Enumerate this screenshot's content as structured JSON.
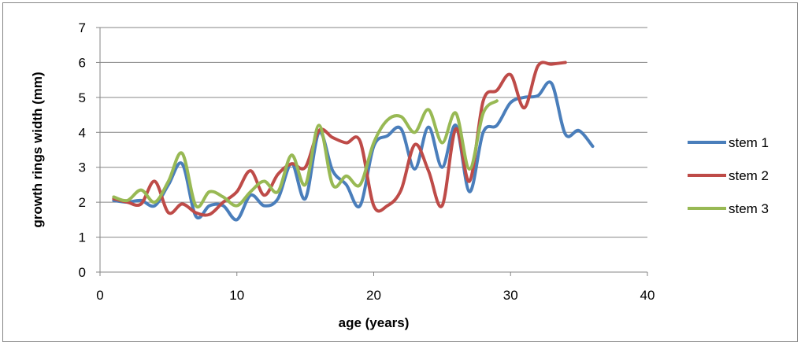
{
  "chart_data": {
    "type": "line",
    "title": "",
    "xlabel": "age (years)",
    "ylabel": "growth rings width (mm)",
    "xlim": [
      0,
      40
    ],
    "ylim": [
      0,
      7
    ],
    "xticks": [
      0,
      10,
      20,
      30,
      40
    ],
    "yticks": [
      0,
      1,
      2,
      3,
      4,
      5,
      6,
      7
    ],
    "grid": "horizontal",
    "legend_position": "right",
    "smooth": true,
    "series": [
      {
        "name": "stem 1",
        "color": "#4a7ebb",
        "x": [
          1,
          2,
          3,
          4,
          5,
          6,
          7,
          8,
          9,
          10,
          11,
          12,
          13,
          14,
          15,
          16,
          17,
          18,
          19,
          20,
          21,
          22,
          23,
          24,
          25,
          26,
          27,
          28,
          29,
          30,
          31,
          32,
          33,
          34,
          35,
          36
        ],
        "values": [
          2.05,
          2.0,
          2.05,
          1.9,
          2.5,
          3.1,
          1.6,
          1.9,
          1.9,
          1.5,
          2.2,
          1.9,
          2.1,
          3.1,
          2.1,
          4.0,
          2.9,
          2.5,
          1.9,
          3.6,
          3.9,
          4.1,
          2.95,
          4.15,
          3.0,
          4.2,
          2.3,
          4.0,
          4.2,
          4.85,
          5.0,
          5.05,
          5.4,
          3.95,
          4.05,
          3.6
        ]
      },
      {
        "name": "stem 2",
        "color": "#be4b48",
        "x": [
          1,
          2,
          3,
          4,
          5,
          6,
          7,
          8,
          9,
          10,
          11,
          12,
          13,
          14,
          15,
          16,
          17,
          18,
          19,
          20,
          21,
          22,
          23,
          24,
          25,
          26,
          27,
          28,
          29,
          30,
          31,
          32,
          33,
          34
        ],
        "values": [
          2.1,
          2.0,
          1.95,
          2.6,
          1.7,
          1.95,
          1.7,
          1.65,
          2.0,
          2.3,
          2.9,
          2.2,
          2.8,
          3.1,
          3.0,
          4.05,
          3.85,
          3.7,
          3.75,
          1.9,
          1.9,
          2.35,
          3.65,
          2.9,
          1.9,
          4.1,
          2.6,
          4.9,
          5.2,
          5.65,
          4.7,
          5.9,
          5.95,
          6.0
        ]
      },
      {
        "name": "stem 3",
        "color": "#98b954",
        "x": [
          1,
          2,
          3,
          4,
          5,
          6,
          7,
          8,
          9,
          10,
          11,
          12,
          13,
          14,
          15,
          16,
          17,
          18,
          19,
          20,
          21,
          22,
          23,
          24,
          25,
          26,
          27,
          28,
          29
        ],
        "values": [
          2.15,
          2.05,
          2.35,
          2.0,
          2.6,
          3.4,
          1.9,
          2.3,
          2.15,
          1.9,
          2.3,
          2.6,
          2.3,
          3.35,
          2.5,
          4.2,
          2.5,
          2.75,
          2.5,
          3.7,
          4.35,
          4.45,
          4.0,
          4.65,
          3.7,
          4.55,
          2.95,
          4.55,
          4.9
        ]
      }
    ]
  }
}
